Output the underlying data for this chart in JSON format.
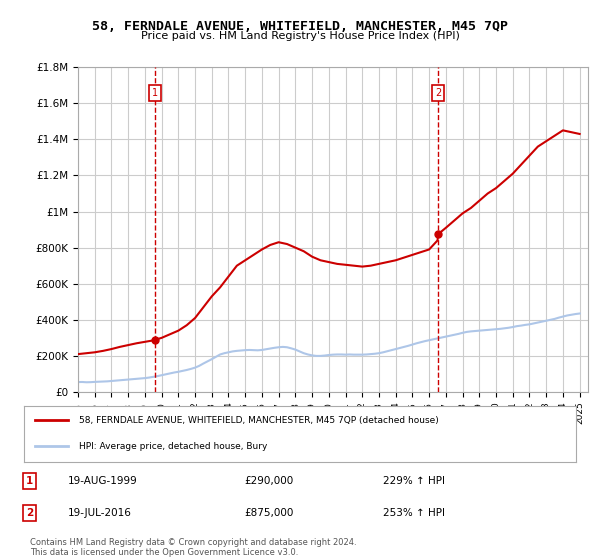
{
  "title": "58, FERNDALE AVENUE, WHITEFIELD, MANCHESTER, M45 7QP",
  "subtitle": "Price paid vs. HM Land Registry's House Price Index (HPI)",
  "legend_line1": "58, FERNDALE AVENUE, WHITEFIELD, MANCHESTER, M45 7QP (detached house)",
  "legend_line2": "HPI: Average price, detached house, Bury",
  "footnote": "Contains HM Land Registry data © Crown copyright and database right 2024.\nThis data is licensed under the Open Government Licence v3.0.",
  "table": [
    {
      "num": "1",
      "date": "19-AUG-1999",
      "price": "£290,000",
      "hpi": "229% ↑ HPI"
    },
    {
      "num": "2",
      "date": "19-JUL-2016",
      "price": "£875,000",
      "hpi": "253% ↑ HPI"
    }
  ],
  "point1_year": 1999.63,
  "point1_value": 290000,
  "point2_year": 2016.54,
  "point2_value": 875000,
  "hpi_color": "#aec6e8",
  "house_color": "#cc0000",
  "vline_color": "#cc0000",
  "ylim": [
    0,
    1800000
  ],
  "xlim_start": 1995,
  "xlim_end": 2025.5,
  "background_color": "#ffffff",
  "grid_color": "#cccccc",
  "hpi_data": {
    "years": [
      1995.0,
      1995.25,
      1995.5,
      1995.75,
      1996.0,
      1996.25,
      1996.5,
      1996.75,
      1997.0,
      1997.25,
      1997.5,
      1997.75,
      1998.0,
      1998.25,
      1998.5,
      1998.75,
      1999.0,
      1999.25,
      1999.5,
      1999.75,
      2000.0,
      2000.25,
      2000.5,
      2000.75,
      2001.0,
      2001.25,
      2001.5,
      2001.75,
      2002.0,
      2002.25,
      2002.5,
      2002.75,
      2003.0,
      2003.25,
      2003.5,
      2003.75,
      2004.0,
      2004.25,
      2004.5,
      2004.75,
      2005.0,
      2005.25,
      2005.5,
      2005.75,
      2006.0,
      2006.25,
      2006.5,
      2006.75,
      2007.0,
      2007.25,
      2007.5,
      2007.75,
      2008.0,
      2008.25,
      2008.5,
      2008.75,
      2009.0,
      2009.25,
      2009.5,
      2009.75,
      2010.0,
      2010.25,
      2010.5,
      2010.75,
      2011.0,
      2011.25,
      2011.5,
      2011.75,
      2012.0,
      2012.25,
      2012.5,
      2012.75,
      2013.0,
      2013.25,
      2013.5,
      2013.75,
      2014.0,
      2014.25,
      2014.5,
      2014.75,
      2015.0,
      2015.25,
      2015.5,
      2015.75,
      2016.0,
      2016.25,
      2016.5,
      2016.75,
      2017.0,
      2017.25,
      2017.5,
      2017.75,
      2018.0,
      2018.25,
      2018.5,
      2018.75,
      2019.0,
      2019.25,
      2019.5,
      2019.75,
      2020.0,
      2020.25,
      2020.5,
      2020.75,
      2021.0,
      2021.25,
      2021.5,
      2021.75,
      2022.0,
      2022.25,
      2022.5,
      2022.75,
      2023.0,
      2023.25,
      2023.5,
      2023.75,
      2024.0,
      2024.25,
      2024.5,
      2024.75,
      2025.0
    ],
    "values": [
      55000,
      55500,
      54000,
      54500,
      56000,
      57000,
      58000,
      59000,
      61000,
      63000,
      65000,
      67000,
      69000,
      71000,
      73000,
      75000,
      77000,
      80000,
      84000,
      88000,
      93000,
      98000,
      103000,
      108000,
      112000,
      117000,
      122000,
      128000,
      135000,
      145000,
      158000,
      170000,
      182000,
      195000,
      208000,
      215000,
      220000,
      225000,
      228000,
      230000,
      232000,
      233000,
      232000,
      231000,
      233000,
      237000,
      241000,
      245000,
      248000,
      250000,
      248000,
      242000,
      235000,
      225000,
      215000,
      208000,
      203000,
      200000,
      200000,
      202000,
      205000,
      207000,
      208000,
      208000,
      207000,
      208000,
      207000,
      207000,
      207000,
      208000,
      210000,
      212000,
      215000,
      220000,
      226000,
      232000,
      238000,
      244000,
      250000,
      256000,
      263000,
      270000,
      276000,
      282000,
      287000,
      292000,
      297000,
      302000,
      307000,
      312000,
      317000,
      322000,
      328000,
      333000,
      336000,
      338000,
      340000,
      342000,
      344000,
      346000,
      348000,
      350000,
      353000,
      356000,
      360000,
      365000,
      368000,
      372000,
      375000,
      380000,
      385000,
      390000,
      395000,
      400000,
      405000,
      412000,
      418000,
      424000,
      428000,
      432000,
      435000
    ]
  },
  "house_data": {
    "years": [
      1995.0,
      1995.5,
      1996.0,
      1996.5,
      1997.0,
      1997.5,
      1998.0,
      1998.5,
      1999.0,
      1999.5,
      1999.63,
      2000.0,
      2000.5,
      2001.0,
      2001.5,
      2002.0,
      2002.5,
      2003.0,
      2003.5,
      2004.0,
      2004.5,
      2005.0,
      2005.5,
      2006.0,
      2006.5,
      2007.0,
      2007.5,
      2007.75,
      2008.0,
      2008.5,
      2009.0,
      2009.5,
      2010.0,
      2010.5,
      2011.0,
      2011.5,
      2012.0,
      2012.5,
      2013.0,
      2013.5,
      2014.0,
      2014.5,
      2015.0,
      2015.5,
      2016.0,
      2016.5,
      2016.54,
      2017.0,
      2017.5,
      2018.0,
      2018.5,
      2019.0,
      2019.5,
      2020.0,
      2020.5,
      2021.0,
      2021.5,
      2022.0,
      2022.5,
      2023.0,
      2023.5,
      2024.0,
      2024.5,
      2025.0
    ],
    "values": [
      210000,
      215000,
      220000,
      228000,
      238000,
      250000,
      260000,
      270000,
      278000,
      286000,
      290000,
      300000,
      320000,
      340000,
      370000,
      410000,
      470000,
      530000,
      580000,
      640000,
      700000,
      730000,
      760000,
      790000,
      815000,
      830000,
      820000,
      810000,
      800000,
      780000,
      750000,
      730000,
      720000,
      710000,
      705000,
      700000,
      695000,
      700000,
      710000,
      720000,
      730000,
      745000,
      760000,
      775000,
      790000,
      840000,
      875000,
      910000,
      950000,
      990000,
      1020000,
      1060000,
      1100000,
      1130000,
      1170000,
      1210000,
      1260000,
      1310000,
      1360000,
      1390000,
      1420000,
      1450000,
      1440000,
      1430000
    ]
  }
}
